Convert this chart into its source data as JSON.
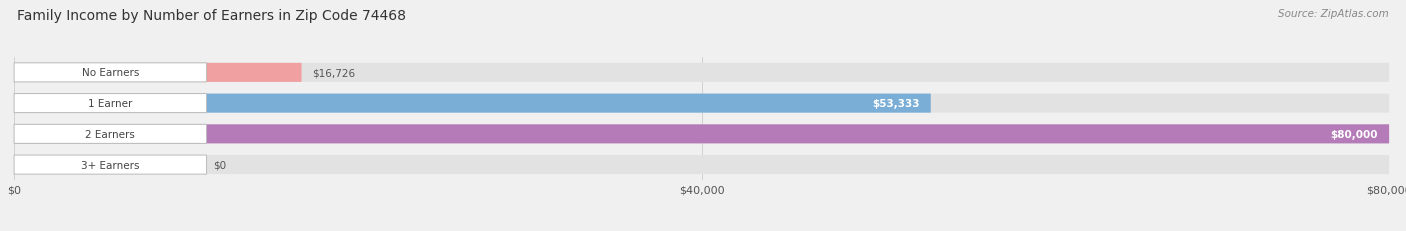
{
  "title": "Family Income by Number of Earners in Zip Code 74468",
  "source": "Source: ZipAtlas.com",
  "categories": [
    "No Earners",
    "1 Earner",
    "2 Earners",
    "3+ Earners"
  ],
  "values": [
    16726,
    53333,
    80000,
    0
  ],
  "bar_colors": [
    "#f0a0a0",
    "#7aaed6",
    "#b57ab8",
    "#7dd4d8"
  ],
  "max_value": 80000,
  "x_ticks": [
    0,
    40000,
    80000
  ],
  "x_tick_labels": [
    "$0",
    "$40,000",
    "$80,000"
  ],
  "background_color": "#f0f0f0",
  "bar_bg_color": "#e2e2e2",
  "title_fontsize": 10,
  "source_fontsize": 7.5,
  "tick_fontsize": 8,
  "bar_label_fontsize": 7.5,
  "cat_label_fontsize": 7.5,
  "value_labels": [
    "$16,726",
    "$53,333",
    "$80,000",
    "$0"
  ],
  "value_label_inside": [
    false,
    true,
    true,
    false
  ]
}
